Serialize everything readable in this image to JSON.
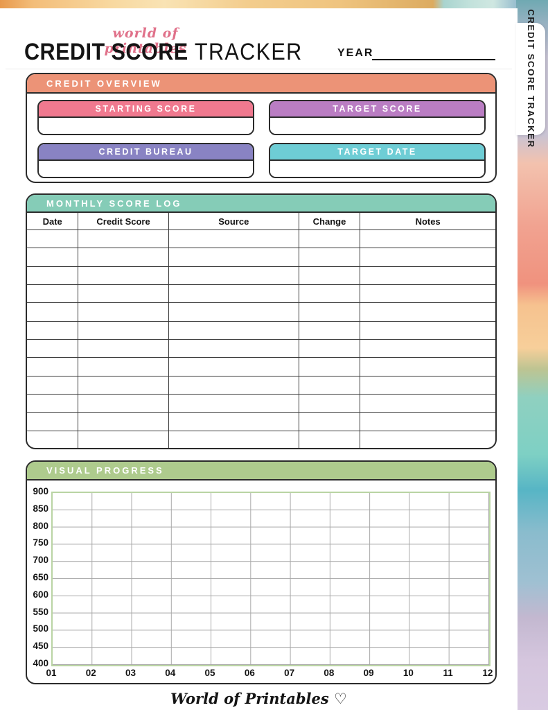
{
  "page": {
    "brand_script": "world of printables",
    "title_bold": "CREDIT SCORE",
    "title_light": " TRACKER",
    "year_label": "YEAR",
    "year_value": "",
    "side_tab_label": "CREDIT SCORE TRACKER",
    "footer_text": "World of Printables ♡"
  },
  "colors": {
    "overview_bar": "#ec9377",
    "monthly_bar": "#85ccb7",
    "visual_bar": "#aecb8d",
    "border_dark": "#2b2b2b",
    "brand_pink": "#e0718a",
    "grid_outer_green": "#b9d4a3",
    "grid_inner_gray": "#a8a8a8"
  },
  "credit_overview": {
    "header": "CREDIT OVERVIEW",
    "fields": [
      {
        "label": "STARTING SCORE",
        "color": "#f0798f",
        "value": ""
      },
      {
        "label": "TARGET SCORE",
        "color": "#ba7dc3",
        "value": ""
      },
      {
        "label": "CREDIT BUREAU",
        "color": "#8983c3",
        "value": ""
      },
      {
        "label": "TARGET DATE",
        "color": "#6ecdd5",
        "value": ""
      }
    ]
  },
  "monthly_score_log": {
    "header": "MONTHLY SCORE LOG",
    "columns": [
      "Date",
      "Credit Score",
      "Source",
      "Change",
      "Notes"
    ],
    "col_widths_pct": [
      11,
      19.3,
      27.8,
      13.1,
      28.8
    ],
    "row_count": 12,
    "rows": []
  },
  "visual_progress": {
    "header": "VISUAL PROGRESS",
    "chart_data": {
      "type": "line",
      "title": "",
      "xlabel": "",
      "ylabel": "",
      "x_ticks": [
        "01",
        "02",
        "03",
        "04",
        "05",
        "06",
        "07",
        "08",
        "09",
        "10",
        "11",
        "12"
      ],
      "y_ticks": [
        "900",
        "850",
        "800",
        "750",
        "700",
        "650",
        "600",
        "550",
        "500",
        "450",
        "400"
      ],
      "ylim": [
        400,
        900
      ],
      "grid": true,
      "series": []
    }
  }
}
